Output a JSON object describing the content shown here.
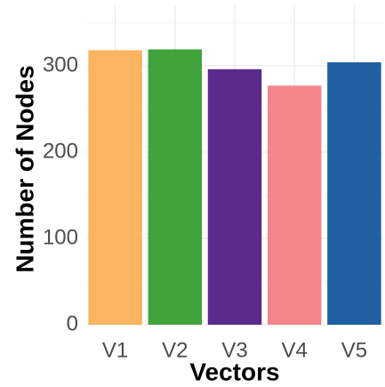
{
  "chart_data": {
    "type": "bar",
    "x_label": "Vectors",
    "y_label": "Number of Nodes",
    "categories": [
      "V1",
      "V2",
      "V3",
      "V4",
      "V5"
    ],
    "values": [
      318,
      319,
      296,
      277,
      304
    ],
    "colors": [
      "#fbb45f",
      "#41a33b",
      "#5b2a8c",
      "#f4868b",
      "#2160a3"
    ],
    "ylim": [
      0,
      370
    ],
    "yticks": [
      0,
      100,
      200,
      300
    ],
    "minor_yticks": [
      50,
      150,
      250,
      350
    ],
    "grid": true
  }
}
